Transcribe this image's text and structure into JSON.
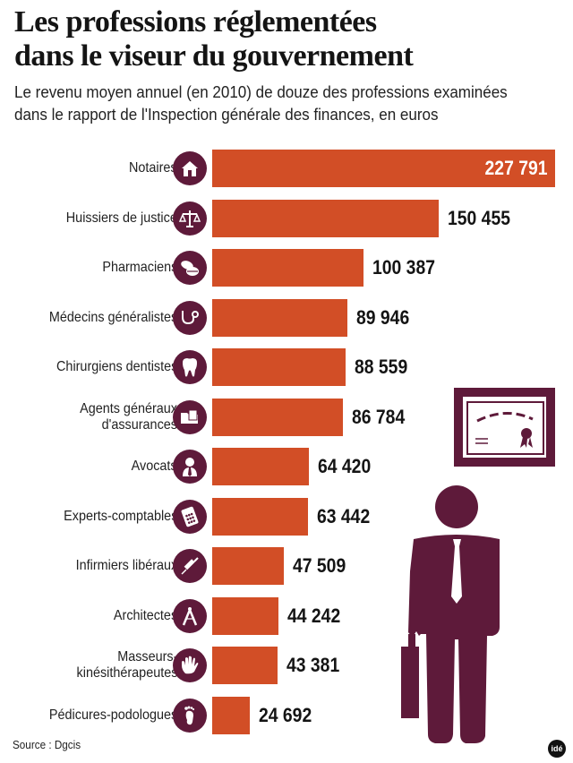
{
  "header": {
    "title_line1": "Les professions réglementées",
    "title_line2": "dans le viseur du gouvernement",
    "subtitle_line1": "Le revenu moyen annuel (en 2010) de douze des professions examinées",
    "subtitle_line2": "dans le rapport de l'Inspection générale des finances, en euros"
  },
  "footer": {
    "source": "Source : Dgcis",
    "logo": "idé"
  },
  "colors": {
    "bar": "#d24e26",
    "icon_bg": "#5e1a3a",
    "illustration": "#5e1a3a",
    "text": "#141414"
  },
  "rows": [
    {
      "label": "Notaires",
      "label2": "",
      "value": "227 791",
      "icon": "house-icon"
    },
    {
      "label": "Huissiers de justice",
      "label2": "",
      "value": "150 455",
      "icon": "scales-icon"
    },
    {
      "label": "Pharmaciens",
      "label2": "",
      "value": "100 387",
      "icon": "pills-icon"
    },
    {
      "label": "Médecins généralistes",
      "label2": "",
      "value": "89 946",
      "icon": "stethoscope-icon"
    },
    {
      "label": "Chirurgiens dentistes",
      "label2": "",
      "value": "88 559",
      "icon": "tooth-icon"
    },
    {
      "label": "Agents généraux",
      "label2": "d'assurances",
      "value": "86 784",
      "icon": "folder-icon"
    },
    {
      "label": "Avocats",
      "label2": "",
      "value": "64 420",
      "icon": "lawyer-icon"
    },
    {
      "label": "Experts-comptables",
      "label2": "",
      "value": "63 442",
      "icon": "calculator-icon"
    },
    {
      "label": "Infirmiers libéraux",
      "label2": "",
      "value": "47 509",
      "icon": "syringe-icon"
    },
    {
      "label": "Architectes",
      "label2": "",
      "value": "44 242",
      "icon": "compass-icon"
    },
    {
      "label": "Masseurs-",
      "label2": "kinésithérapeutes",
      "value": "43 381",
      "icon": "hand-icon"
    },
    {
      "label": "Pédicures-podologues",
      "label2": "",
      "value": "24 692",
      "icon": "foot-icon"
    }
  ],
  "chart_data": {
    "type": "bar",
    "orientation": "horizontal",
    "title": "Les professions réglementées dans le viseur du gouvernement",
    "subtitle": "Le revenu moyen annuel (en 2010) de douze des professions examinées dans le rapport de l'Inspection générale des finances, en euros",
    "categories": [
      "Notaires",
      "Huissiers de justice",
      "Pharmaciens",
      "Médecins généralistes",
      "Chirurgiens dentistes",
      "Agents généraux d'assurances",
      "Avocats",
      "Experts-comptables",
      "Infirmiers libéraux",
      "Architectes",
      "Masseurs-kinésithérapeutes",
      "Pédicures-podologues"
    ],
    "values": [
      227791,
      150455,
      100387,
      89946,
      88559,
      86784,
      64420,
      63442,
      47509,
      44242,
      43381,
      24692
    ],
    "xlabel": "",
    "ylabel": "",
    "unit": "euros",
    "grid": false,
    "legend": null,
    "source": "Source : Dgcis"
  }
}
